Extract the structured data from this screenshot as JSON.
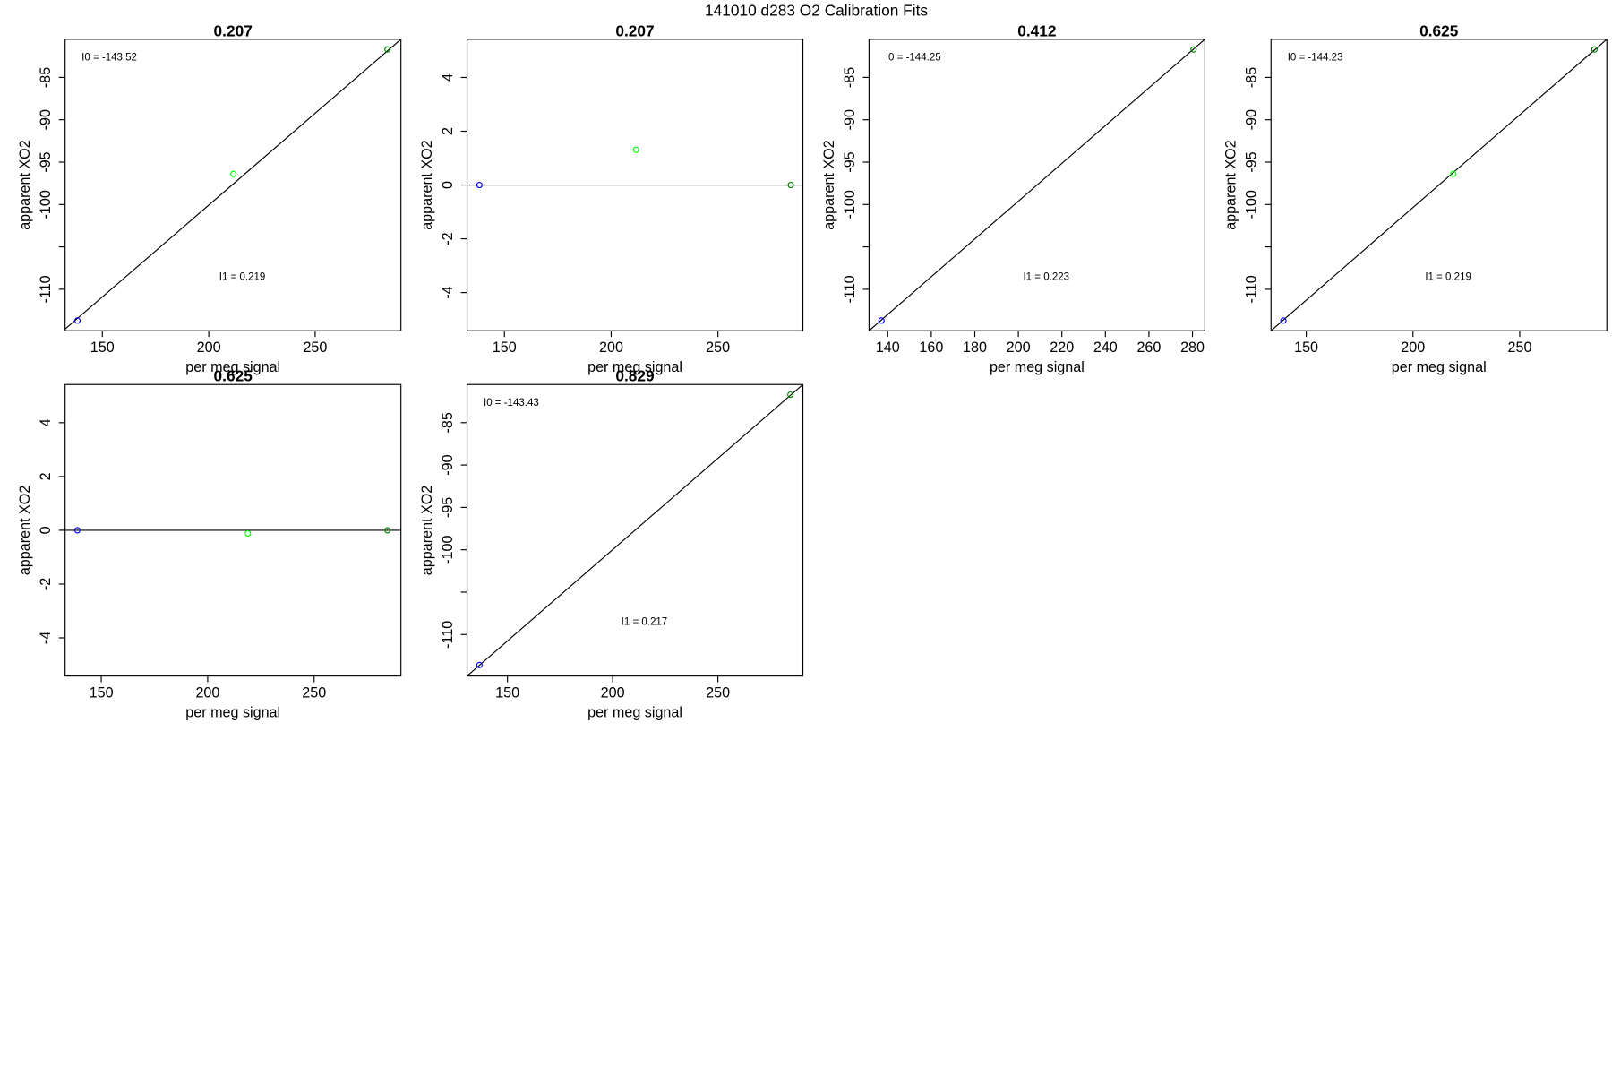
{
  "title": "141010   d283   O2 Calibration Fits",
  "chart_data": [
    {
      "type": "scatter",
      "title": "0.207",
      "xlabel": "per meg signal",
      "ylabel": "apparent XO2",
      "x": [
        138.3,
        211.6,
        284.0
      ],
      "values": [
        -113.7,
        -96.4,
        -81.7
      ],
      "colors": [
        "#0000ff",
        "#00ff00",
        "#008000"
      ],
      "line_x": [
        132.5,
        290.3
      ],
      "line_y": [
        -114.7,
        -80.5
      ],
      "annotations": [
        "I0 =  -143.52",
        "I1 =  0.219"
      ],
      "xlim": [
        132.5,
        290.3
      ],
      "xticks": [
        150,
        200,
        250
      ],
      "ylim": [
        -114.9,
        -80.5
      ],
      "yticks": [
        -110,
        {
          "value": -105,
          "label": null
        },
        -100,
        -95,
        -90,
        -85
      ]
    },
    {
      "type": "scatter",
      "title": "0.207",
      "xlabel": "per meg signal",
      "ylabel": "apparent XO2",
      "x": [
        138.3,
        211.7,
        284.1
      ],
      "values": [
        0,
        1.31,
        0
      ],
      "colors": [
        "#0000ff",
        "#00ff00",
        "#008000"
      ],
      "line_x": [
        132.5,
        289.8
      ],
      "line_y": [
        0,
        0
      ],
      "xlim": [
        132.5,
        289.8
      ],
      "xticks": [
        150,
        200,
        250
      ],
      "ylim": [
        -5.42,
        5.42
      ],
      "yticks": [
        -4,
        -2,
        0,
        2,
        4
      ]
    },
    {
      "type": "scatter",
      "title": "0.412",
      "xlabel": "per meg signal",
      "ylabel": "apparent XO2",
      "x": [
        137.1,
        280.5
      ],
      "values": [
        -113.7,
        -81.7
      ],
      "colors": [
        "#0000ff",
        "#008000"
      ],
      "line_x": [
        131.4,
        285.7
      ],
      "line_y": [
        -114.9,
        -80.5
      ],
      "annotations": [
        "I0 =  -144.25",
        "I1 =  0.223"
      ],
      "xlim": [
        131.4,
        285.7
      ],
      "xticks": [
        140,
        160,
        180,
        200,
        220,
        240,
        260,
        280
      ],
      "ylim": [
        -114.9,
        -80.5
      ],
      "yticks": [
        -110,
        {
          "value": -105,
          "label": null
        },
        -100,
        -95,
        -90,
        -85
      ]
    },
    {
      "type": "scatter",
      "title": "0.625",
      "xlabel": "per meg signal",
      "ylabel": "apparent XO2",
      "x": [
        139.3,
        218.9,
        285.0
      ],
      "values": [
        -113.7,
        -96.4,
        -81.7
      ],
      "colors": [
        "#0000ff",
        "#00ff00",
        "#008000"
      ],
      "line_x": [
        133.5,
        290.8
      ],
      "line_y": [
        -114.9,
        -80.5
      ],
      "annotations": [
        "I0 =  -144.23",
        "I1 =  0.219"
      ],
      "xlim": [
        133.5,
        290.8
      ],
      "xticks": [
        150,
        200,
        250
      ],
      "ylim": [
        -114.9,
        -80.5
      ],
      "yticks": [
        -110,
        {
          "value": -105,
          "label": null
        },
        -100,
        -95,
        -90,
        -85
      ]
    },
    {
      "type": "scatter",
      "title": "0.625",
      "xlabel": "per meg signal",
      "ylabel": "apparent XO2",
      "x": [
        138.8,
        218.9,
        284.5
      ],
      "values": [
        0,
        -0.12,
        0
      ],
      "colors": [
        "#0000ff",
        "#00ff00",
        "#008000"
      ],
      "line_x": [
        133.0,
        290.8
      ],
      "line_y": [
        0,
        0
      ],
      "xlim": [
        133.0,
        290.8
      ],
      "xticks": [
        150,
        200,
        250
      ],
      "ylim": [
        -5.42,
        5.42
      ],
      "yticks": [
        -4,
        -2,
        0,
        2,
        4
      ]
    },
    {
      "type": "scatter",
      "title": "0.829",
      "xlabel": "per meg signal",
      "ylabel": "apparent XO2",
      "x": [
        136.7,
        284.5
      ],
      "values": [
        -113.6,
        -81.7
      ],
      "colors": [
        "#0000ff",
        "#008000"
      ],
      "line_x": [
        130.8,
        290.4
      ],
      "line_y": [
        -114.9,
        -80.5
      ],
      "annotations": [
        "I0 =  -143.43",
        "I1 =  0.217"
      ],
      "xlim": [
        130.8,
        290.4
      ],
      "xticks": [
        150,
        200,
        250
      ],
      "ylim": [
        -114.9,
        -80.5
      ],
      "yticks": [
        -110,
        {
          "value": -105,
          "label": null
        },
        -100,
        -95,
        -90,
        -85
      ]
    }
  ]
}
